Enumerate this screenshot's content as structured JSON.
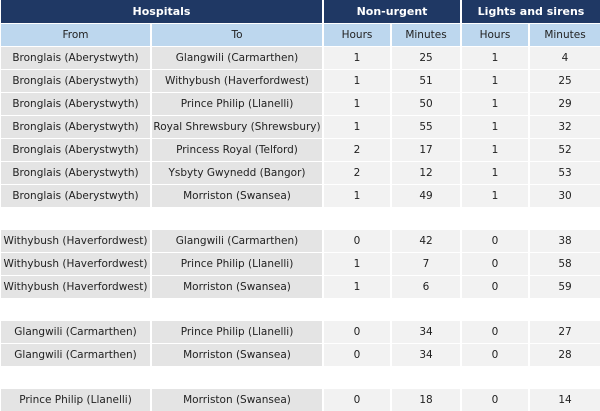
{
  "header": {
    "groups": [
      "Hospitals",
      "Non-urgent",
      "Lights and sirens"
    ],
    "columns": [
      "From",
      "To",
      "Hours",
      "Minutes",
      "Hours",
      "Minutes"
    ]
  },
  "row_groups": [
    [
      [
        "Bronglais (Aberystwyth)",
        "Glangwili (Carmarthen)",
        "1",
        "25",
        "1",
        "4"
      ],
      [
        "Bronglais (Aberystwyth)",
        "Withybush (Haverfordwest)",
        "1",
        "51",
        "1",
        "25"
      ],
      [
        "Bronglais (Aberystwyth)",
        "Prince Philip (Llanelli)",
        "1",
        "50",
        "1",
        "29"
      ],
      [
        "Bronglais (Aberystwyth)",
        "Royal Shrewsbury (Shrewsbury)",
        "1",
        "55",
        "1",
        "32"
      ],
      [
        "Bronglais (Aberystwyth)",
        "Princess Royal (Telford)",
        "2",
        "17",
        "1",
        "52"
      ],
      [
        "Bronglais (Aberystwyth)",
        "Ysbyty Gwynedd (Bangor)",
        "2",
        "12",
        "1",
        "53"
      ],
      [
        "Bronglais (Aberystwyth)",
        "Morriston (Swansea)",
        "1",
        "49",
        "1",
        "30"
      ]
    ],
    [
      [
        "Withybush (Haverfordwest)",
        "Glangwili (Carmarthen)",
        "0",
        "42",
        "0",
        "38"
      ],
      [
        "Withybush (Haverfordwest)",
        "Prince Philip (Llanelli)",
        "1",
        "7",
        "0",
        "58"
      ],
      [
        "Withybush (Haverfordwest)",
        "Morriston (Swansea)",
        "1",
        "6",
        "0",
        "59"
      ]
    ],
    [
      [
        "Glangwili (Carmarthen)",
        "Prince Philip (Llanelli)",
        "0",
        "34",
        "0",
        "27"
      ],
      [
        "Glangwili (Carmarthen)",
        "Morriston (Swansea)",
        "0",
        "34",
        "0",
        "28"
      ]
    ],
    [
      [
        "Prince Philip (Llanelli)",
        "Morriston (Swansea)",
        "0",
        "18",
        "0",
        "14"
      ]
    ]
  ]
}
